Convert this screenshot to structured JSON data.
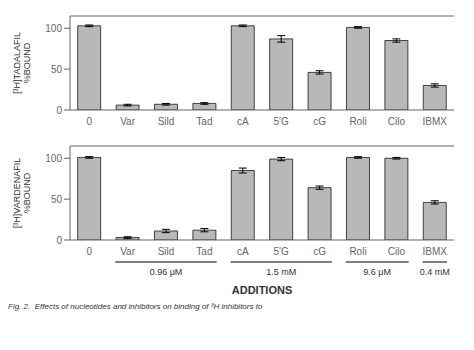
{
  "chart_data": [
    {
      "type": "bar",
      "y_label": "[³H]TADALAFIL\n%BOUND",
      "categories": [
        "0",
        "Var",
        "Sild",
        "Tad",
        "cA",
        "5'G",
        "cG",
        "Roli",
        "Cilo",
        "IBMX"
      ],
      "values": [
        103,
        6,
        7,
        8,
        103,
        87,
        46,
        101,
        85,
        30
      ],
      "errors": [
        1,
        1,
        1,
        1,
        1,
        4,
        2,
        1,
        2,
        2
      ],
      "color": "#b8b8b8",
      "ylim": [
        0,
        115
      ],
      "yticks": [
        0,
        50,
        100
      ],
      "grid": false
    },
    {
      "type": "bar",
      "y_label": "[³H]VARDENAFIL\n%BOUND",
      "x_label": "ADDITIONS",
      "categories": [
        "0",
        "Var",
        "Sild",
        "Tad",
        "cA",
        "5'G",
        "cG",
        "Roli",
        "Cilo",
        "IBMX"
      ],
      "values": [
        101,
        3,
        11,
        12,
        85,
        99,
        64,
        101,
        100,
        46
      ],
      "errors": [
        1,
        1,
        2,
        2,
        3,
        2,
        2,
        1,
        1,
        2
      ],
      "color": "#b8b8b8",
      "ylim": [
        0,
        115
      ],
      "yticks": [
        0,
        50,
        100
      ],
      "grid": false,
      "annotations": [
        {
          "text": "0.96 μM",
          "categories": [
            "Var",
            "Sild",
            "Tad"
          ]
        },
        {
          "text": "1.5 mM",
          "categories": [
            "cA",
            "5'G",
            "cG"
          ]
        },
        {
          "text": "9.6 μM",
          "categories": [
            "Roli",
            "Cilo"
          ]
        },
        {
          "text": "0.4 mM",
          "categories": [
            "IBMX"
          ]
        },
        {
          "text": "Fig. 2.  Effects of nucleotides and inhibitors on binding of ³H inhibitors to"
        }
      ]
    }
  ]
}
